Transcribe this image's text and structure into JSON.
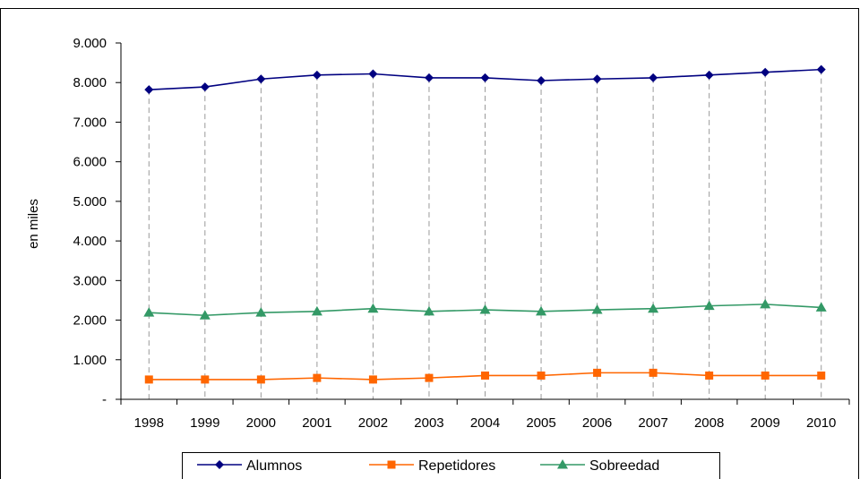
{
  "chart_data": {
    "type": "line",
    "title": "",
    "xlabel": "",
    "ylabel": "en miles",
    "categories": [
      "1998",
      "1999",
      "2000",
      "2001",
      "2002",
      "2003",
      "2004",
      "2005",
      "2006",
      "2007",
      "2008",
      "2009",
      "2010"
    ],
    "ylim": [
      0,
      9000
    ],
    "yticks": [
      0,
      1000,
      2000,
      3000,
      4000,
      5000,
      6000,
      7000,
      8000,
      9000
    ],
    "ytick_labels": [
      "-",
      "1.000",
      "2.000",
      "3.000",
      "4.000",
      "5.000",
      "6.000",
      "7.000",
      "8.000",
      "9.000"
    ],
    "grid": "vertical dashed drop lines at each category",
    "legend_position": "bottom",
    "series": [
      {
        "name": "Alumnos",
        "color": "#000080",
        "marker": "diamond",
        "values": [
          7820,
          7890,
          8090,
          8190,
          8220,
          8120,
          8120,
          8050,
          8090,
          8120,
          8190,
          8260,
          8330
        ]
      },
      {
        "name": "Repetidores",
        "color": "#FF6600",
        "marker": "square",
        "values": [
          500,
          500,
          500,
          540,
          500,
          540,
          600,
          600,
          670,
          670,
          600,
          600,
          600
        ]
      },
      {
        "name": "Sobreedad",
        "color": "#339966",
        "marker": "triangle",
        "values": [
          2190,
          2120,
          2190,
          2220,
          2290,
          2220,
          2260,
          2220,
          2260,
          2290,
          2360,
          2400,
          2320
        ]
      }
    ]
  }
}
